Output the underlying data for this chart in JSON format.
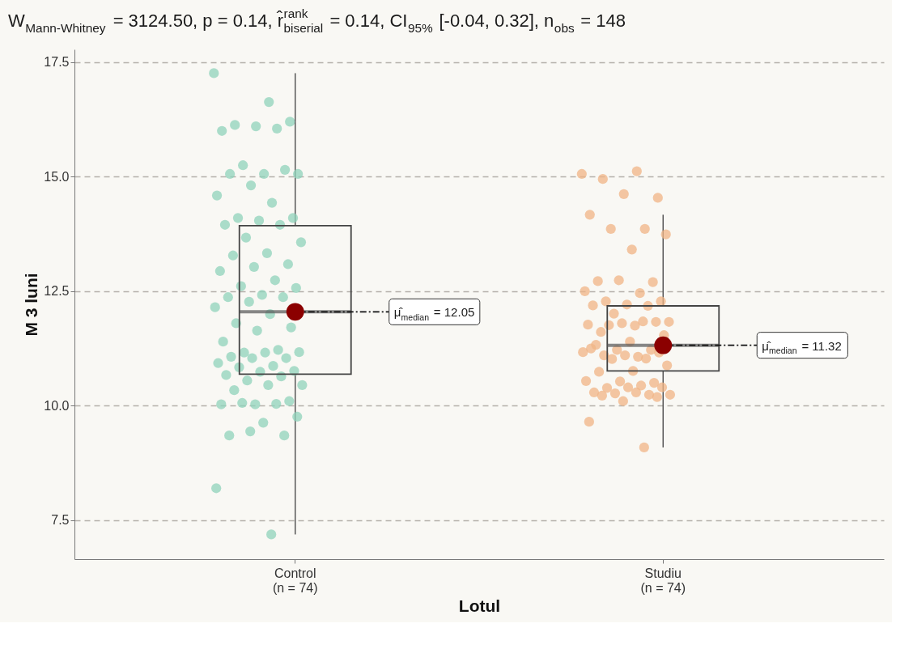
{
  "chart_data": {
    "type": "box",
    "title": "W$_{Mann-Whitney}$ = 3124.50, p = 0.14, r̂$^{rank}$$_{biserial}$ = 0.14, CI$_{95%}$ [-0.04, 0.32], n$_{obs}$ = 148",
    "xlabel": "Lotul",
    "ylabel": "M 3 luni",
    "categories": [
      "Control\n(n = 74)",
      "Studiu\n(n = 74)"
    ],
    "boxes": [
      {
        "low": 7.19,
        "q1": 10.69,
        "median": 12.05,
        "q3": 13.93,
        "high": 17.26
      },
      {
        "low": 9.09,
        "q1": 10.76,
        "median": 11.32,
        "q3": 12.18,
        "high": 14.17
      }
    ],
    "series": [
      {
        "type": "scatter",
        "color": "#8fd3bb",
        "x": [
          "Control\n(n = 74)",
          "Control\n(n = 74)",
          "Control\n(n = 74)",
          "Control\n(n = 74)",
          "Control\n(n = 74)",
          "Control\n(n = 74)",
          "Control\n(n = 74)",
          "Control\n(n = 74)",
          "Control\n(n = 74)",
          "Control\n(n = 74)",
          "Control\n(n = 74)",
          "Control\n(n = 74)",
          "Control\n(n = 74)",
          "Control\n(n = 74)",
          "Control\n(n = 74)",
          "Control\n(n = 74)",
          "Control\n(n = 74)",
          "Control\n(n = 74)",
          "Control\n(n = 74)",
          "Control\n(n = 74)",
          "Control\n(n = 74)",
          "Control\n(n = 74)",
          "Control\n(n = 74)",
          "Control\n(n = 74)",
          "Control\n(n = 74)",
          "Control\n(n = 74)",
          "Control\n(n = 74)",
          "Control\n(n = 74)",
          "Control\n(n = 74)",
          "Control\n(n = 74)",
          "Control\n(n = 74)",
          "Control\n(n = 74)",
          "Control\n(n = 74)",
          "Control\n(n = 74)",
          "Control\n(n = 74)",
          "Control\n(n = 74)",
          "Control\n(n = 74)",
          "Control\n(n = 74)",
          "Control\n(n = 74)",
          "Control\n(n = 74)",
          "Control\n(n = 74)",
          "Control\n(n = 74)",
          "Control\n(n = 74)",
          "Control\n(n = 74)",
          "Control\n(n = 74)",
          "Control\n(n = 74)",
          "Control\n(n = 74)",
          "Control\n(n = 74)",
          "Control\n(n = 74)",
          "Control\n(n = 74)",
          "Control\n(n = 74)",
          "Control\n(n = 74)",
          "Control\n(n = 74)",
          "Control\n(n = 74)",
          "Control\n(n = 74)",
          "Control\n(n = 74)",
          "Control\n(n = 74)",
          "Control\n(n = 74)",
          "Control\n(n = 74)",
          "Control\n(n = 74)",
          "Control\n(n = 74)",
          "Control\n(n = 74)",
          "Control\n(n = 74)",
          "Control\n(n = 74)",
          "Control\n(n = 74)",
          "Control\n(n = 74)",
          "Control\n(n = 74)",
          "Control\n(n = 74)",
          "Control\n(n = 74)",
          "Control\n(n = 74)"
        ],
        "values": [
          17.26,
          16.63,
          16.13,
          16.2,
          16.1,
          16.0,
          16.05,
          15.25,
          15.06,
          15.06,
          15.06,
          15.15,
          14.81,
          14.59,
          14.43,
          14.1,
          14.1,
          14.04,
          13.95,
          13.95,
          13.67,
          13.57,
          13.33,
          13.28,
          13.09,
          13.03,
          12.94,
          12.74,
          12.61,
          12.57,
          12.42,
          12.37,
          12.37,
          12.27,
          12.15,
          12.0,
          11.8,
          11.71,
          11.64,
          11.4,
          11.22,
          11.16,
          11.17,
          11.16,
          11.07,
          11.04,
          11.04,
          10.93,
          10.87,
          10.84,
          10.76,
          10.74,
          10.67,
          10.64,
          10.55,
          10.45,
          10.45,
          10.34,
          10.1,
          10.03,
          10.03,
          10.04,
          10.06,
          9.76,
          9.63,
          9.35,
          9.35,
          9.44,
          8.2,
          7.19
        ]
      },
      {
        "type": "scatter",
        "color": "#f0b486",
        "x": [
          "Studiu\n(n = 74)",
          "Studiu\n(n = 74)",
          "Studiu\n(n = 74)",
          "Studiu\n(n = 74)",
          "Studiu\n(n = 74)",
          "Studiu\n(n = 74)",
          "Studiu\n(n = 74)",
          "Studiu\n(n = 74)",
          "Studiu\n(n = 74)",
          "Studiu\n(n = 74)",
          "Studiu\n(n = 74)",
          "Studiu\n(n = 74)",
          "Studiu\n(n = 74)",
          "Studiu\n(n = 74)",
          "Studiu\n(n = 74)",
          "Studiu\n(n = 74)",
          "Studiu\n(n = 74)",
          "Studiu\n(n = 74)",
          "Studiu\n(n = 74)",
          "Studiu\n(n = 74)",
          "Studiu\n(n = 74)",
          "Studiu\n(n = 74)",
          "Studiu\n(n = 74)",
          "Studiu\n(n = 74)",
          "Studiu\n(n = 74)",
          "Studiu\n(n = 74)",
          "Studiu\n(n = 74)",
          "Studiu\n(n = 74)",
          "Studiu\n(n = 74)",
          "Studiu\n(n = 74)",
          "Studiu\n(n = 74)",
          "Studiu\n(n = 74)",
          "Studiu\n(n = 74)",
          "Studiu\n(n = 74)",
          "Studiu\n(n = 74)",
          "Studiu\n(n = 74)",
          "Studiu\n(n = 74)",
          "Studiu\n(n = 74)",
          "Studiu\n(n = 74)",
          "Studiu\n(n = 74)",
          "Studiu\n(n = 74)",
          "Studiu\n(n = 74)",
          "Studiu\n(n = 74)",
          "Studiu\n(n = 74)",
          "Studiu\n(n = 74)",
          "Studiu\n(n = 74)",
          "Studiu\n(n = 74)",
          "Studiu\n(n = 74)",
          "Studiu\n(n = 74)",
          "Studiu\n(n = 74)",
          "Studiu\n(n = 74)",
          "Studiu\n(n = 74)",
          "Studiu\n(n = 74)",
          "Studiu\n(n = 74)",
          "Studiu\n(n = 74)",
          "Studiu\n(n = 74)",
          "Studiu\n(n = 74)",
          "Studiu\n(n = 74)",
          "Studiu\n(n = 74)",
          "Studiu\n(n = 74)",
          "Studiu\n(n = 74)",
          "Studiu\n(n = 74)"
        ],
        "values": [
          15.06,
          15.12,
          14.95,
          14.54,
          14.62,
          14.17,
          13.86,
          13.86,
          13.74,
          13.41,
          12.72,
          12.7,
          12.74,
          12.5,
          12.46,
          12.28,
          12.28,
          12.21,
          12.19,
          12.18,
          12.01,
          11.83,
          11.75,
          11.61,
          11.83,
          11.8,
          11.77,
          11.84,
          11.76,
          11.54,
          11.4,
          11.33,
          11.22,
          11.22,
          11.17,
          11.07,
          11.1,
          11.16,
          11.1,
          11.25,
          11.03,
          11.02,
          10.88,
          10.76,
          10.74,
          10.5,
          10.53,
          10.54,
          10.44,
          10.39,
          10.4,
          10.4,
          10.29,
          10.24,
          10.27,
          10.24,
          10.29,
          10.22,
          10.19,
          10.1,
          9.65,
          9.09
        ]
      }
    ],
    "ylim": [
      6.65,
      17.78
    ],
    "yticks": [
      7.5,
      {
        "value": 10,
        "label": "10.0"
      },
      12.5,
      {
        "value": 15,
        "label": "15.0"
      },
      17.5
    ],
    "grid": "y",
    "annotations": [
      {
        "text": "μ̂$_{median}$ = 12.05",
        "x": "Control\n(n = 74)",
        "y": 12.05
      },
      {
        "text": "μ̂$_{median}$ = 11.32",
        "x": "Studiu\n(n = 74)",
        "y": 11.32
      }
    ]
  }
}
